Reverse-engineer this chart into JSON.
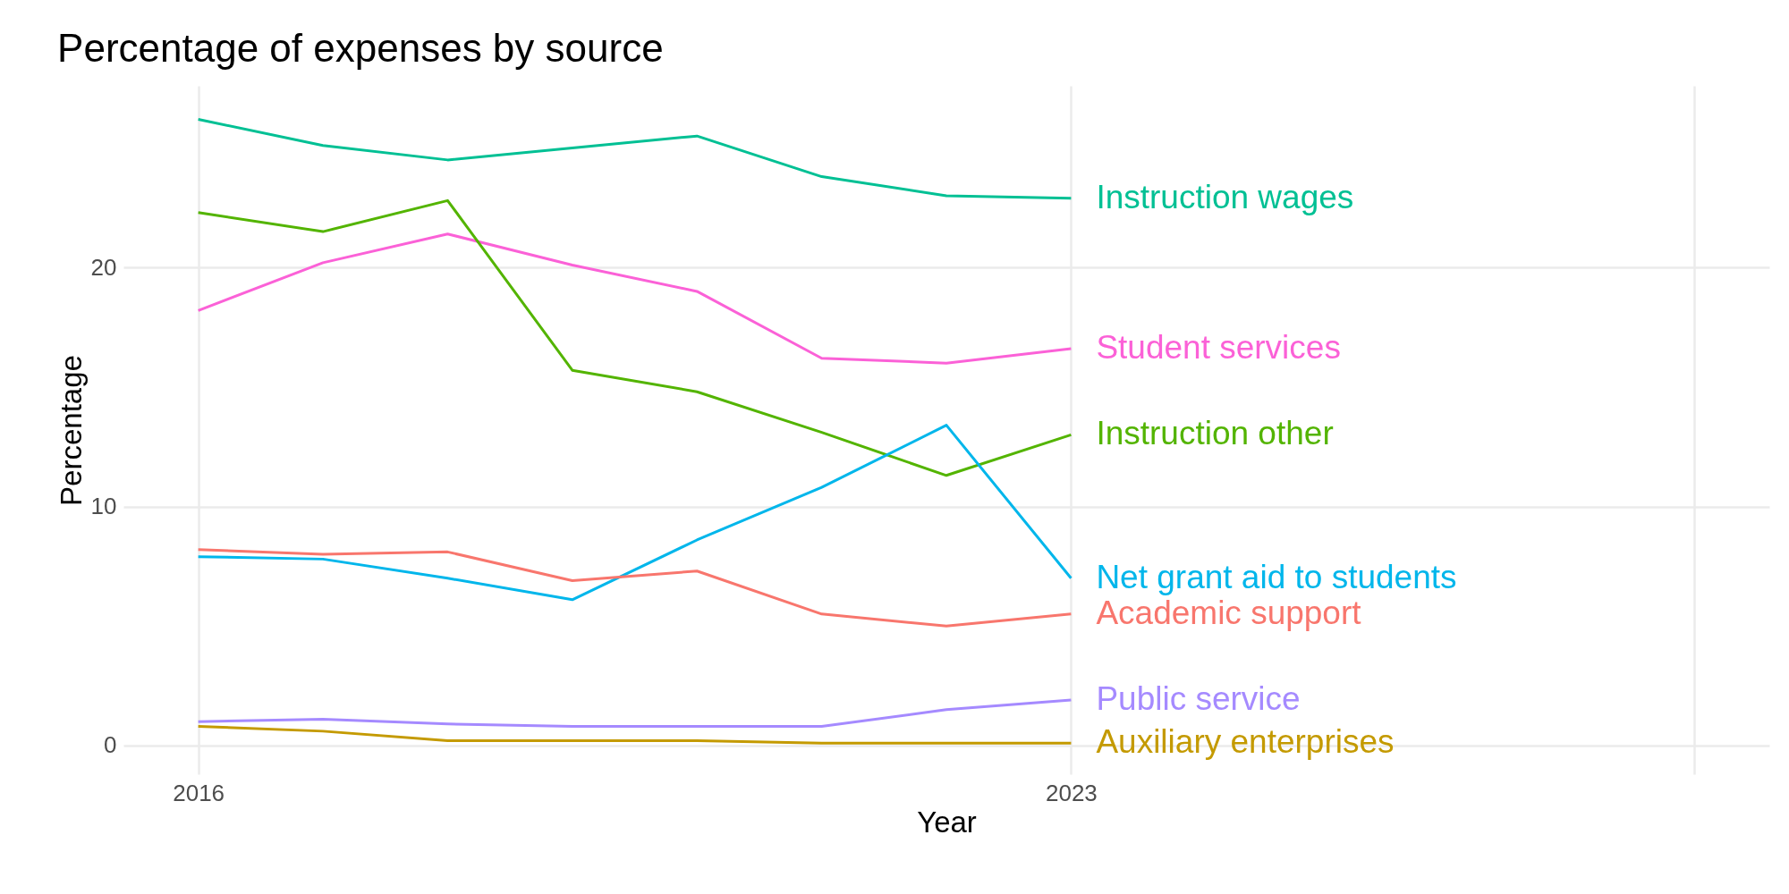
{
  "chart_data": {
    "type": "line",
    "title": "Percentage of expenses by source",
    "xlabel": "Year",
    "ylabel": "Percentage",
    "x": [
      2016,
      2017,
      2018,
      2019,
      2020,
      2021,
      2022,
      2023
    ],
    "xlim": [
      2015.4,
      2028.6
    ],
    "xticks": [
      2016,
      2023,
      {
        "value": 2028,
        "label": null
      }
    ],
    "ylim": [
      -1.2,
      27.6
    ],
    "yticks": [
      0,
      10,
      20
    ],
    "grid": true,
    "legend": false,
    "marker": "none",
    "line_style": "solid",
    "series": [
      {
        "name": "Instruction wages",
        "color": "#00c094",
        "values": [
          26.2,
          25.1,
          24.5,
          25.0,
          25.5,
          23.8,
          23.0,
          22.9
        ]
      },
      {
        "name": "Student services",
        "color": "#fb61d7",
        "values": [
          18.2,
          20.2,
          21.4,
          20.1,
          19.0,
          16.2,
          16.0,
          16.6
        ]
      },
      {
        "name": "Instruction other",
        "color": "#53b400",
        "values": [
          22.3,
          21.5,
          22.8,
          15.7,
          14.8,
          13.1,
          11.3,
          13.0
        ]
      },
      {
        "name": "Net grant aid to students",
        "color": "#00b6eb",
        "values": [
          7.9,
          7.8,
          7.0,
          6.1,
          8.6,
          10.8,
          13.4,
          7.0
        ]
      },
      {
        "name": "Academic support",
        "color": "#f8766d",
        "values": [
          8.2,
          8.0,
          8.1,
          6.9,
          7.3,
          5.5,
          5.0,
          5.5
        ]
      },
      {
        "name": "Public service",
        "color": "#a58aff",
        "values": [
          1.0,
          1.1,
          0.9,
          0.8,
          0.8,
          0.8,
          1.5,
          1.9
        ]
      },
      {
        "name": "Auxiliary enterprises",
        "color": "#c49a00",
        "values": [
          0.8,
          0.6,
          0.2,
          0.2,
          0.2,
          0.1,
          0.1,
          0.1
        ]
      }
    ]
  }
}
